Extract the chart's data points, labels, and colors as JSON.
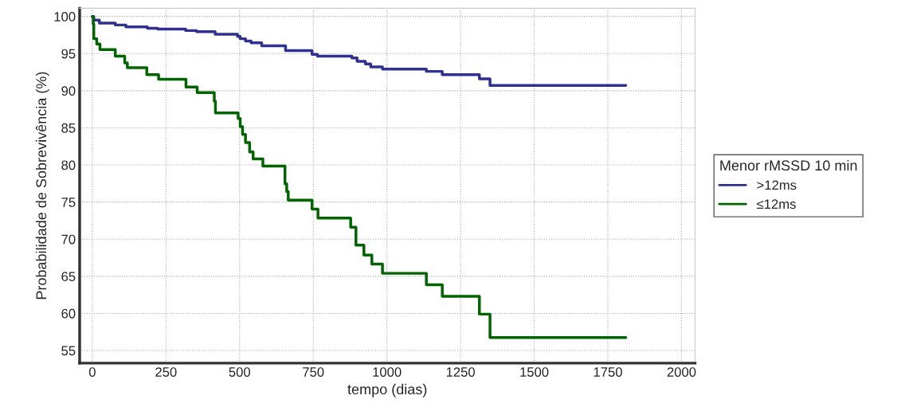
{
  "chart_data": {
    "type": "step",
    "xlabel": "tempo (dias)",
    "ylabel": "Probabilidade de Sobrevivência (%)",
    "legend_title": "Menor rMSSD 10 min",
    "xlim": [
      -43,
      2046
    ],
    "ylim": [
      53.3,
      101.1
    ],
    "xticks": [
      0,
      250,
      500,
      750,
      1000,
      1250,
      1500,
      1750,
      2000
    ],
    "yticks": [
      55,
      60,
      65,
      70,
      75,
      80,
      85,
      90,
      95,
      100
    ],
    "grid": true,
    "legend": "right",
    "line_style": "solid",
    "marker": "none",
    "series": [
      {
        "name": ">12ms",
        "color": "#2e3192",
        "x": [
          0,
          5,
          24,
          78,
          114,
          187,
          222,
          317,
          354,
          417,
          493,
          502,
          520,
          539,
          575,
          656,
          746,
          764,
          881,
          899,
          927,
          945,
          985,
          1134,
          1188,
          1314,
          1350,
          1811
        ],
        "values": [
          100,
          99.5,
          99.1,
          98.85,
          98.6,
          98.4,
          98.3,
          98.1,
          97.95,
          97.6,
          97.3,
          97.0,
          96.7,
          96.45,
          96.05,
          95.4,
          94.9,
          94.65,
          94.4,
          93.95,
          93.6,
          93.2,
          92.9,
          92.6,
          92.15,
          91.6,
          90.7,
          90.7
        ]
      },
      {
        "name": "≤12ms",
        "color": "#006400",
        "x": [
          0,
          3,
          5,
          15,
          26,
          78,
          110,
          119,
          185,
          225,
          318,
          356,
          414,
          418,
          495,
          502,
          510,
          520,
          534,
          546,
          579,
          654,
          660,
          665,
          746,
          766,
          877,
          895,
          922,
          949,
          985,
          1134,
          1188,
          1314,
          1350,
          1811
        ],
        "values": [
          100,
          99.0,
          97.0,
          96.3,
          95.55,
          94.65,
          93.75,
          93.1,
          92.15,
          91.55,
          90.5,
          89.75,
          88.6,
          87.0,
          86.25,
          85.15,
          84.1,
          83.0,
          81.75,
          80.8,
          79.85,
          77.45,
          76.4,
          75.25,
          74.05,
          72.85,
          71.6,
          69.2,
          67.85,
          66.65,
          65.4,
          63.85,
          62.3,
          59.9,
          56.75,
          56.75
        ]
      }
    ]
  }
}
